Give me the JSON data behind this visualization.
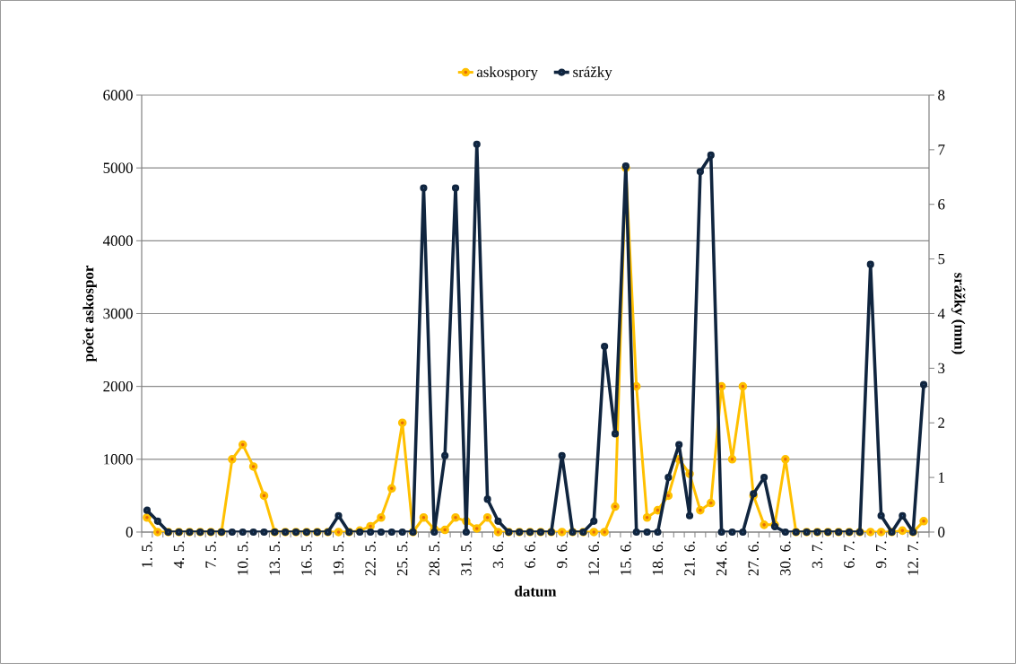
{
  "chart_data": {
    "type": "line",
    "xlabel": "datum",
    "ylabel": "počet askospor",
    "y2label": "srážky (mm)",
    "categories": [
      "1. 5.",
      null,
      null,
      "4. 5.",
      null,
      null,
      "7. 5.",
      null,
      null,
      "10. 5.",
      null,
      null,
      "13. 5.",
      null,
      null,
      "16. 5.",
      null,
      null,
      "19. 5.",
      null,
      null,
      "22. 5.",
      null,
      null,
      "25. 5.",
      null,
      null,
      "28. 5.",
      null,
      null,
      "31. 5.",
      null,
      null,
      "3. 6.",
      null,
      null,
      "6. 6.",
      null,
      null,
      "9. 6.",
      null,
      null,
      "12. 6.",
      null,
      null,
      "15. 6.",
      null,
      null,
      "18. 6.",
      null,
      null,
      "21. 6.",
      null,
      null,
      "24. 6.",
      null,
      null,
      "27. 6.",
      null,
      null,
      "30. 6.",
      null,
      null,
      "3. 7.",
      null,
      null,
      "6. 7.",
      null,
      null,
      "9. 7.",
      null,
      null,
      "12. 7.",
      null
    ],
    "series": [
      {
        "name": "askospory",
        "color": "#ffc000",
        "values": [
          200,
          0,
          0,
          0,
          0,
          0,
          0,
          0,
          1000,
          1200,
          900,
          500,
          0,
          0,
          0,
          0,
          0,
          0,
          0,
          0,
          20,
          80,
          200,
          600,
          1500,
          0,
          200,
          40,
          30,
          200,
          150,
          50,
          200,
          0,
          0,
          0,
          0,
          0,
          0,
          0,
          0,
          0,
          0,
          0,
          350,
          5000,
          2000,
          200,
          300,
          500,
          1000,
          800,
          300,
          400,
          2000,
          1000,
          2000,
          500,
          100,
          100,
          1000,
          0,
          0,
          0,
          0,
          0,
          0,
          0,
          0,
          0,
          0,
          20,
          0,
          150
        ]
      },
      {
        "name": "srážky",
        "color": "#10253f",
        "axis": "y2",
        "values": [
          0.4,
          0.2,
          0,
          0,
          0,
          0,
          0,
          0,
          0,
          0,
          0,
          0,
          0,
          0,
          0,
          0,
          0,
          0,
          0.3,
          0,
          0,
          0,
          0,
          0,
          0,
          0,
          6.3,
          0,
          1.4,
          6.3,
          0,
          7.1,
          0.6,
          0.2,
          0,
          0,
          0,
          0,
          0,
          1.4,
          0,
          0,
          0.2,
          3.4,
          1.8,
          6.7,
          0,
          0,
          0,
          1.0,
          1.6,
          0.3,
          6.6,
          6.9,
          0,
          0,
          0,
          0.7,
          1.0,
          0.1,
          0,
          0,
          0,
          0,
          0,
          0,
          0,
          0,
          4.9,
          0.3,
          0,
          0.3,
          0,
          2.7
        ]
      }
    ],
    "ylim": [
      0,
      6000
    ],
    "yticks": [
      0,
      1000,
      2000,
      3000,
      4000,
      5000,
      6000
    ],
    "y2lim": [
      0,
      8
    ],
    "y2ticks": [
      0,
      1,
      2,
      3,
      4,
      5,
      6,
      7,
      8
    ],
    "grid": "y",
    "legend": "top",
    "marker": "circle",
    "line_style": "solid"
  }
}
